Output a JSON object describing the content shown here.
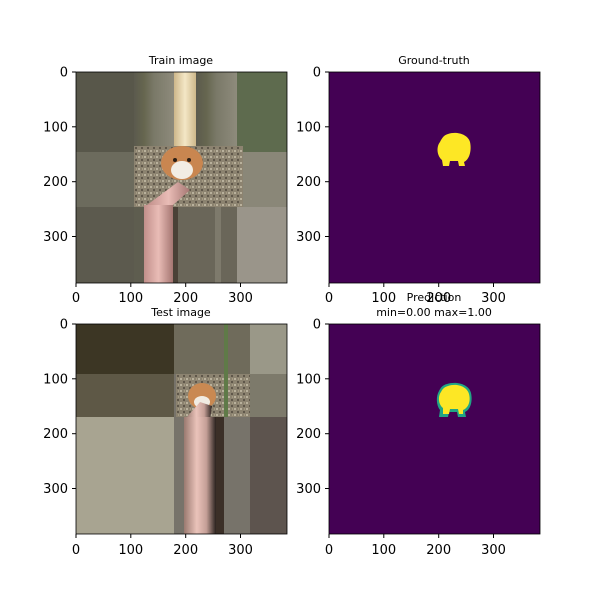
{
  "chart_data": [
    {
      "type": "image",
      "title": "Train image",
      "content": "photo",
      "xticks": [
        0,
        100,
        200,
        300
      ],
      "yticks": [
        0,
        100,
        200,
        300
      ],
      "xlim": [
        0,
        384
      ],
      "ylim": [
        384,
        0
      ]
    },
    {
      "type": "heatmap",
      "title": "Ground-truth",
      "colormap": "viridis",
      "background": "#440154",
      "foreground": "#fde725",
      "xticks": [
        0,
        100,
        200,
        300
      ],
      "yticks": [
        0,
        100,
        200,
        300
      ],
      "xlim": [
        0,
        384
      ],
      "ylim": [
        384,
        0
      ]
    },
    {
      "type": "image",
      "title": "Test image",
      "content": "photo",
      "xticks": [
        0,
        100,
        200,
        300
      ],
      "yticks": [
        0,
        100,
        200,
        300
      ],
      "xlim": [
        0,
        384
      ],
      "ylim": [
        384,
        0
      ]
    },
    {
      "type": "heatmap",
      "title": "Prediction",
      "subtitle": "min=0.00 max=1.00",
      "colormap": "viridis",
      "background": "#440154",
      "foreground": "#fde725",
      "edge": "#21a585",
      "xticks": [
        0,
        100,
        200,
        300
      ],
      "yticks": [
        0,
        100,
        200,
        300
      ],
      "xlim": [
        0,
        384
      ],
      "ylim": [
        384,
        0
      ]
    }
  ]
}
